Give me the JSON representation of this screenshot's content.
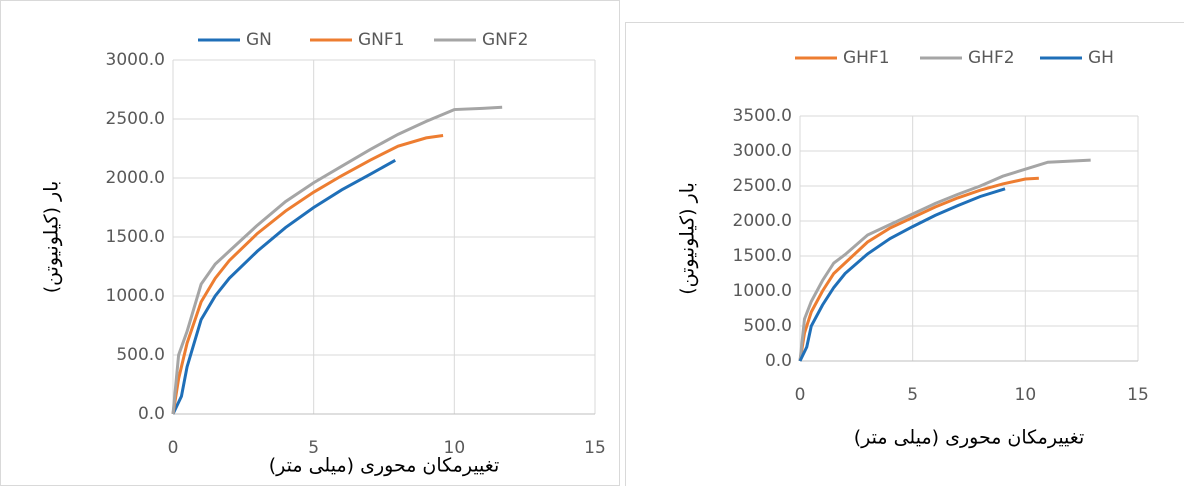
{
  "chart_data": [
    {
      "type": "line",
      "xlabel": "تغییرمکان محوری (میلی متر)",
      "ylabel": "بار (کیلونیوتن)",
      "xlim": [
        0,
        15
      ],
      "xticks": [
        0,
        5,
        10,
        15
      ],
      "ylim": [
        0,
        3000
      ],
      "yticks": [
        {
          "value": 0,
          "label": "0.0"
        },
        {
          "value": 500,
          "label": "500.0"
        },
        {
          "value": 1000,
          "label": "1000.0"
        },
        {
          "value": 1500,
          "label": "1500.0"
        },
        {
          "value": 2000,
          "label": "2000.0"
        },
        {
          "value": 2500,
          "label": "2500.0"
        },
        {
          "value": 3000,
          "label": "3000.0"
        }
      ],
      "grid": true,
      "legend": "top",
      "series": [
        {
          "name": "GN",
          "color": "#1f6fb8",
          "x": [
            0,
            0.3,
            0.5,
            1,
            1.5,
            2,
            3,
            4,
            5,
            6,
            7,
            7.9
          ],
          "values": [
            0,
            150,
            400,
            800,
            1000,
            1150,
            1380,
            1580,
            1750,
            1900,
            2030,
            2150
          ]
        },
        {
          "name": "GNF1",
          "color": "#ed7d31",
          "x": [
            0,
            0.2,
            0.5,
            1,
            1.5,
            2,
            3,
            4,
            5,
            6,
            7,
            8,
            9,
            9.6
          ],
          "values": [
            0,
            300,
            600,
            950,
            1150,
            1300,
            1530,
            1720,
            1880,
            2020,
            2150,
            2270,
            2340,
            2360
          ]
        },
        {
          "name": "GNF2",
          "color": "#a5a5a5",
          "x": [
            0,
            0.2,
            0.5,
            1,
            1.5,
            2,
            3,
            4,
            5,
            6,
            7,
            8,
            9,
            10,
            11,
            11.7
          ],
          "values": [
            0,
            500,
            700,
            1100,
            1270,
            1380,
            1600,
            1800,
            1960,
            2100,
            2240,
            2370,
            2480,
            2580,
            2590,
            2600
          ]
        }
      ]
    },
    {
      "type": "line",
      "xlabel": "تغییرمکان محوری (میلی متر)",
      "ylabel": "بار (کیلونیوتن)",
      "xlim": [
        0,
        15
      ],
      "xticks": [
        0,
        5,
        10,
        15
      ],
      "ylim": [
        0,
        3500
      ],
      "yticks": [
        {
          "value": 0,
          "label": "0.0"
        },
        {
          "value": 500,
          "label": "500.0"
        },
        {
          "value": 1000,
          "label": "1000.0"
        },
        {
          "value": 1500,
          "label": "1500.0"
        },
        {
          "value": 2000,
          "label": "2000.0"
        },
        {
          "value": 2500,
          "label": "2500.0"
        },
        {
          "value": 3000,
          "label": "3000.0"
        },
        {
          "value": 3500,
          "label": "3500.0"
        }
      ],
      "grid": true,
      "legend": "top",
      "series": [
        {
          "name": "GHF1",
          "color": "#ed7d31",
          "x": [
            0,
            0.2,
            0.5,
            1,
            1.5,
            2,
            3,
            4,
            5,
            6,
            7,
            8,
            9,
            10,
            10.6
          ],
          "values": [
            0,
            400,
            700,
            1000,
            1250,
            1400,
            1700,
            1900,
            2050,
            2200,
            2330,
            2440,
            2530,
            2600,
            2610
          ]
        },
        {
          "name": "GHF2",
          "color": "#a5a5a5",
          "x": [
            0,
            0.2,
            0.5,
            1,
            1.5,
            2,
            3,
            4,
            5,
            6,
            7,
            8,
            9,
            10,
            11,
            12.9
          ],
          "values": [
            0,
            600,
            850,
            1150,
            1400,
            1520,
            1800,
            1950,
            2100,
            2250,
            2380,
            2500,
            2640,
            2740,
            2840,
            2870
          ]
        },
        {
          "name": "GH",
          "color": "#1f6fb8",
          "x": [
            0,
            0.3,
            0.5,
            1,
            1.5,
            2,
            3,
            4,
            5,
            6,
            7,
            8,
            9.1
          ],
          "values": [
            0,
            200,
            500,
            800,
            1050,
            1250,
            1530,
            1750,
            1920,
            2080,
            2220,
            2350,
            2460
          ]
        }
      ]
    }
  ]
}
